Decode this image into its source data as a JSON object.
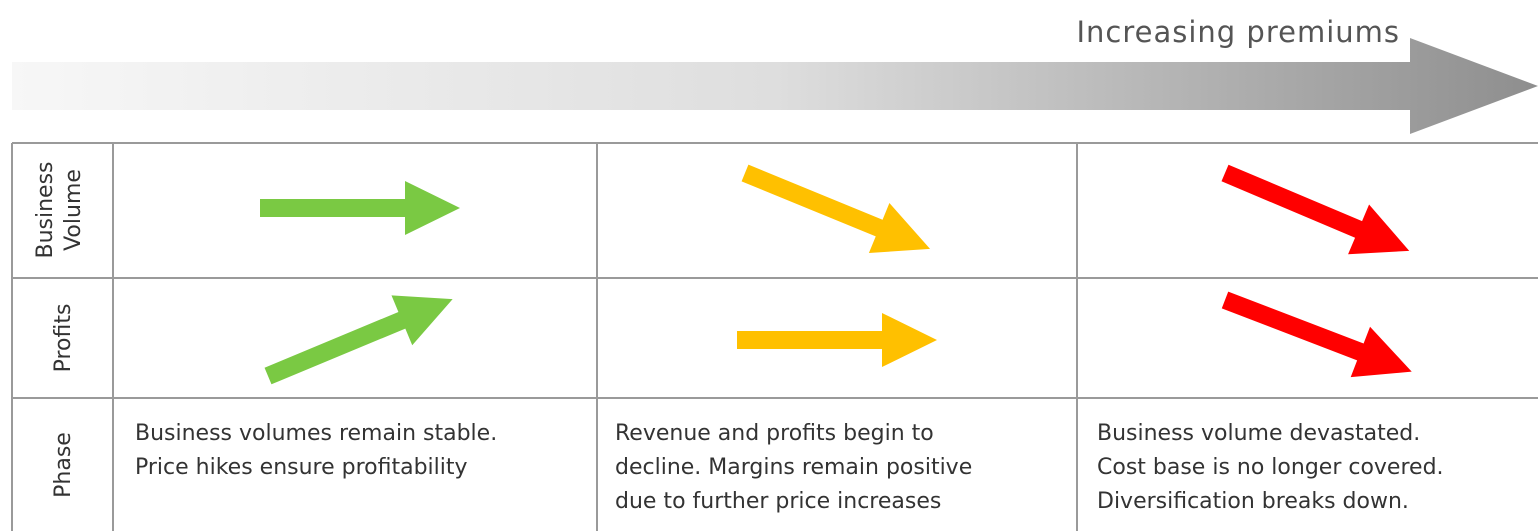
{
  "header": {
    "title": "Increasing premiums"
  },
  "table": {
    "row_labels": [
      [
        "Business",
        "Volume"
      ],
      [
        "Profits"
      ],
      [
        "Phase"
      ]
    ],
    "phases": [
      [
        "Business volumes remain stable.",
        "Price hikes ensure profitability"
      ],
      [
        "Revenue and profits begin to",
        "decline. Margins remain positive",
        "due to further price increases"
      ],
      [
        "Business volume devastated.",
        "Cost base is no longer covered.",
        "Diversification breaks down."
      ]
    ]
  }
}
